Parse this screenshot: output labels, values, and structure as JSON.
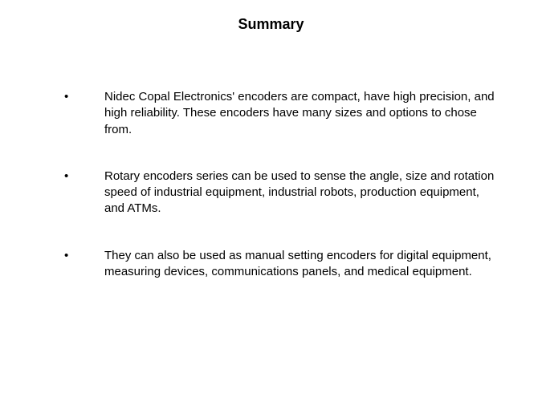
{
  "title": "Summary",
  "bullets": [
    "Nidec Copal Electronics' encoders are compact, have high precision, and high reliability. These encoders have many sizes and options to chose from.",
    "Rotary encoders series can be used to sense the angle, size and rotation speed of industrial equipment, industrial robots, production equipment, and ATMs.",
    "They can also be used as manual setting encoders for digital equipment, measuring devices, communications panels, and medical equipment."
  ],
  "colors": {
    "background": "#ffffff",
    "text": "#000000"
  },
  "typography": {
    "title_fontsize": 18,
    "body_fontsize": 15,
    "font_family": "Verdana"
  }
}
